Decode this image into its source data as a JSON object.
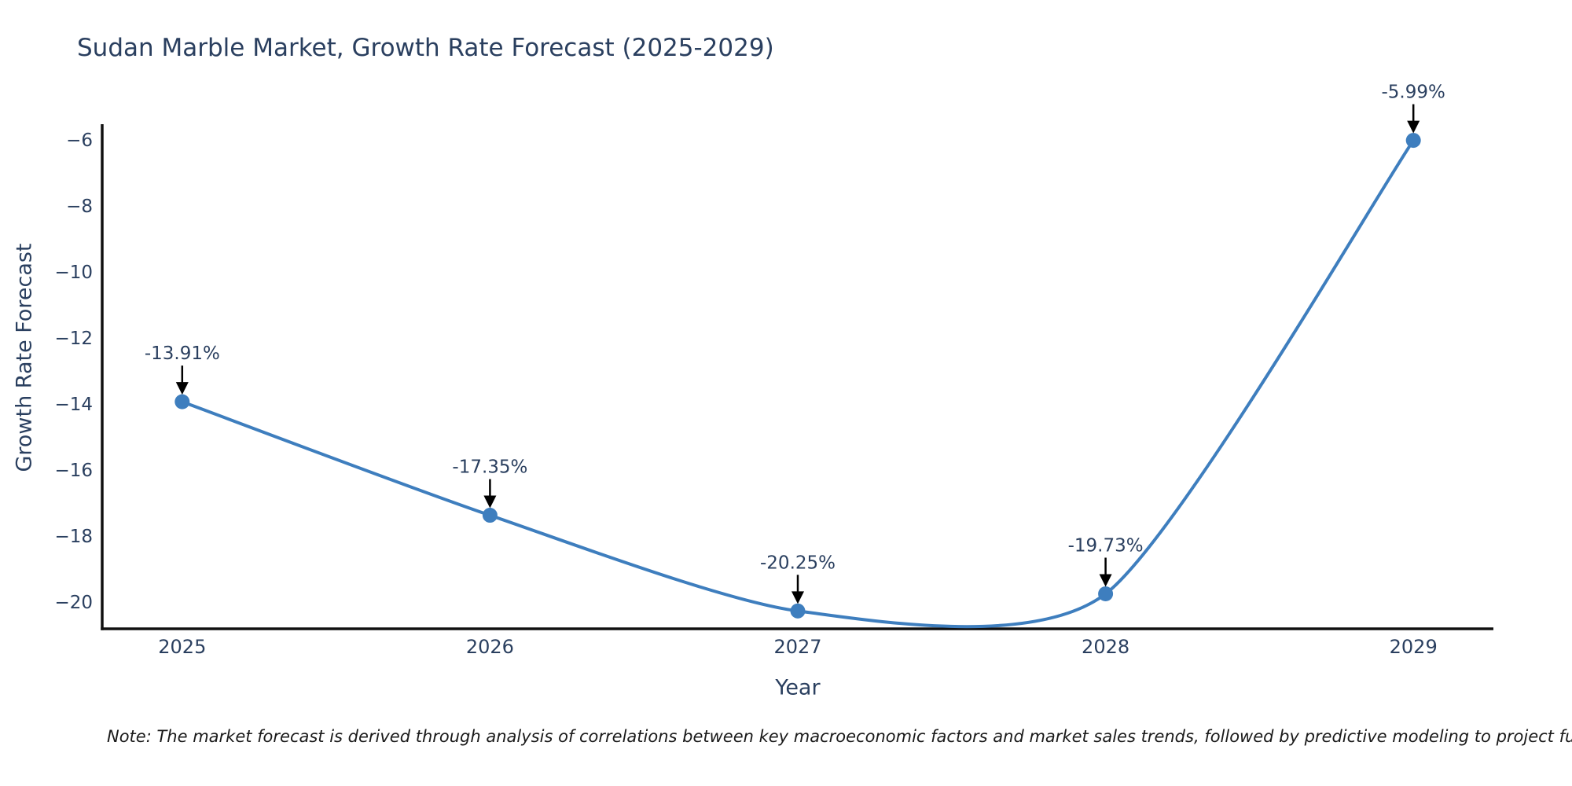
{
  "page": {
    "note": "Note: The market forecast is derived through analysis of correlations between key macroeconomic factors and market sales trends, followed by predictive modeling to project future sales."
  },
  "chart_data": {
    "type": "line",
    "line_shape": "spline",
    "title": "Sudan Marble Market, Growth Rate Forecast (2025-2029)",
    "xlabel": "Year",
    "ylabel": "Growth Rate Forecast",
    "x": [
      2025,
      2026,
      2027,
      2028,
      2029
    ],
    "series": [
      {
        "name": "Growth Rate Forecast",
        "values": [
          -13.91,
          -17.35,
          -20.25,
          -19.73,
          -5.99
        ]
      }
    ],
    "point_labels": [
      "-13.91%",
      "-17.35%",
      "-20.25%",
      "-19.73%",
      "-5.99%"
    ],
    "xticks": [
      2025,
      2026,
      2027,
      2028,
      2029
    ],
    "yticks": [
      -6,
      -8,
      -10,
      -12,
      -14,
      -16,
      -18,
      -20
    ],
    "xlim": [
      2024.74,
      2029.26
    ],
    "ylim": [
      -20.79,
      -5.5
    ],
    "grid": false,
    "legend": "none",
    "colors": {
      "line": "#3e7ebe",
      "marker": "#3e7ebe",
      "axis": "#101010",
      "tick_text": "#2a3f5f",
      "annotation_text": "#2a3f5f",
      "annotation_arrow": "#000000",
      "background": "#ffffff"
    }
  }
}
